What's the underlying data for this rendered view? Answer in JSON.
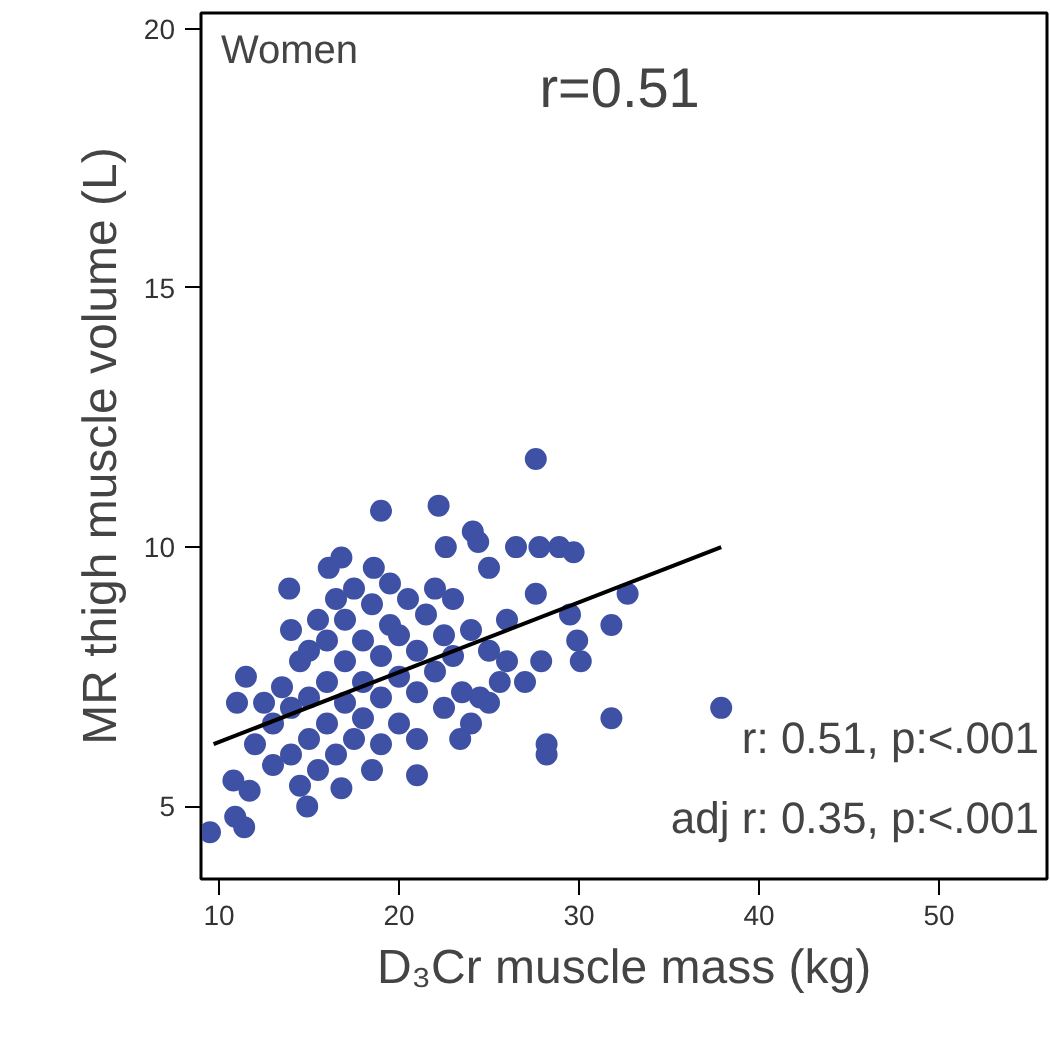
{
  "chart_data": {
    "type": "scatter",
    "xlabel": "D₃Cr muscle mass (kg)",
    "ylabel": "MR thigh muscle volume (L)",
    "xlim": [
      9,
      56
    ],
    "ylim": [
      3.6,
      20.3
    ],
    "xticks": [
      10,
      20,
      30,
      40,
      50
    ],
    "yticks": [
      5,
      10,
      15,
      20
    ],
    "grid": false,
    "annotations": [
      "Women",
      "r=0.51",
      "r: 0.51, p:<.001",
      "adj r: 0.35, p:<.001"
    ],
    "series": [
      {
        "marker": "circle",
        "color": "#3f51a5",
        "x": [
          9.5,
          10.9,
          11.4,
          14.9,
          27.6,
          19.0,
          22.2,
          24.1,
          24.4,
          26.5,
          27.8,
          28.9,
          29.7,
          32.7,
          31.8,
          29.5,
          29.9,
          30.1,
          31.8,
          37.9,
          28.2,
          28.2,
          27.9,
          27.6,
          21.0,
          25.6,
          27.0,
          10.8,
          11.7,
          13.9,
          16.1,
          16.8,
          18.6,
          22.6,
          25.0,
          11.0,
          11.5,
          23.4,
          24.5,
          16.8,
          18.5,
          12,
          12.5,
          13,
          13,
          13.5,
          14,
          14,
          14,
          14.5,
          14.5,
          15,
          15,
          15,
          15.5,
          15.5,
          16,
          16,
          16,
          16.5,
          16.5,
          17,
          17,
          17,
          17.5,
          17.5,
          18,
          18,
          18,
          18.5,
          19,
          19,
          19,
          19.5,
          19.5,
          20,
          20,
          20,
          20.5,
          21,
          21,
          21,
          21.5,
          22,
          22,
          22.5,
          22.5,
          23,
          23,
          23.5,
          24,
          24,
          25,
          25,
          26,
          26
        ],
        "values": [
          4.5,
          4.8,
          4.6,
          5.0,
          11.7,
          10.7,
          10.8,
          10.3,
          10.1,
          10.0,
          10.0,
          10.0,
          9.9,
          9.1,
          8.5,
          8.7,
          8.2,
          7.8,
          6.7,
          6.9,
          6.2,
          6.0,
          7.8,
          9.1,
          5.6,
          7.4,
          7.4,
          5.5,
          5.3,
          9.2,
          9.6,
          9.8,
          9.6,
          10.0,
          9.6,
          7.0,
          7.5,
          6.3,
          7.1,
          5.35,
          5.7,
          6.2,
          7.0,
          5.8,
          6.6,
          7.3,
          6.0,
          6.9,
          8.4,
          5.4,
          7.8,
          6.3,
          7.1,
          8.0,
          5.7,
          8.6,
          6.6,
          7.4,
          8.2,
          6.0,
          9.0,
          7.0,
          7.8,
          8.6,
          6.3,
          9.2,
          7.4,
          8.2,
          6.7,
          8.9,
          7.1,
          7.9,
          6.2,
          8.5,
          9.3,
          7.5,
          6.6,
          8.3,
          9.0,
          7.2,
          8.0,
          6.3,
          8.7,
          7.6,
          9.2,
          6.9,
          8.3,
          7.9,
          9.0,
          7.2,
          8.4,
          6.6,
          8.0,
          7.0,
          8.6,
          7.8
        ]
      },
      {
        "type": "line",
        "marker": "none",
        "color": "#000000",
        "x": [
          9.7,
          37.9
        ],
        "values": [
          6.2,
          10.0
        ]
      }
    ]
  }
}
